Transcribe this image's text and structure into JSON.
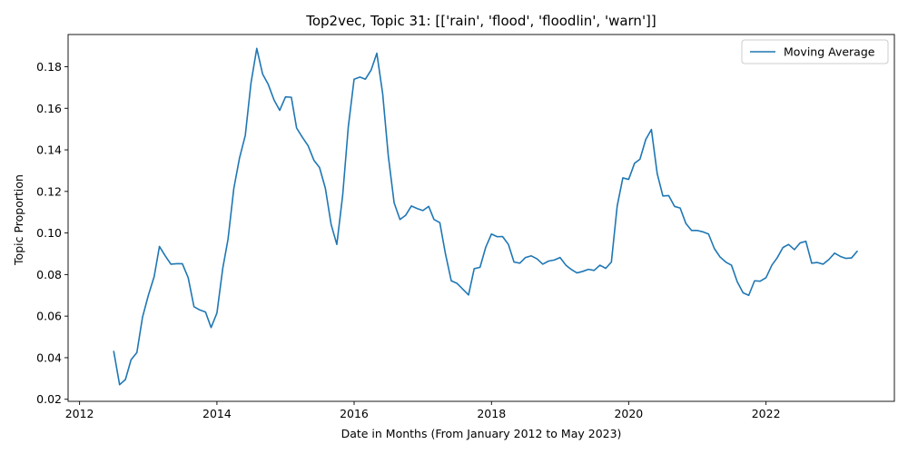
{
  "chart_data": {
    "type": "line",
    "title": "Top2vec, Topic 31: [['rain', 'flood', 'floodlin', 'warn']]",
    "xlabel": "Date in Months (From January 2012 to May 2023)",
    "ylabel": "Topic Proportion",
    "xlim": [
      "2011-11-01",
      "2023-11-15"
    ],
    "ylim": [
      0.019,
      0.1955
    ],
    "x_ticks": [
      {
        "value": "2012-01-01",
        "label": "2012"
      },
      {
        "value": "2014-01-01",
        "label": "2014"
      },
      {
        "value": "2016-01-01",
        "label": "2016"
      },
      {
        "value": "2018-01-01",
        "label": "2018"
      },
      {
        "value": "2020-01-01",
        "label": "2020"
      },
      {
        "value": "2022-01-01",
        "label": "2022"
      }
    ],
    "y_ticks": [
      {
        "value": 0.02,
        "label": "0.02"
      },
      {
        "value": 0.04,
        "label": "0.04"
      },
      {
        "value": 0.06,
        "label": "0.06"
      },
      {
        "value": 0.08,
        "label": "0.08"
      },
      {
        "value": 0.1,
        "label": "0.10"
      },
      {
        "value": 0.12,
        "label": "0.12"
      },
      {
        "value": 0.14,
        "label": "0.14"
      },
      {
        "value": 0.16,
        "label": "0.16"
      },
      {
        "value": 0.18,
        "label": "0.18"
      }
    ],
    "grid": false,
    "legend_position": "top-right",
    "series": [
      {
        "name": "Moving Average",
        "color": "#1f77b4",
        "x": [
          "2012-07",
          "2012-08",
          "2012-09",
          "2012-10",
          "2012-11",
          "2012-12",
          "2013-01",
          "2013-02",
          "2013-03",
          "2013-04",
          "2013-05",
          "2013-06",
          "2013-07",
          "2013-08",
          "2013-09",
          "2013-10",
          "2013-11",
          "2013-12",
          "2014-01",
          "2014-02",
          "2014-03",
          "2014-04",
          "2014-05",
          "2014-06",
          "2014-07",
          "2014-08",
          "2014-09",
          "2014-10",
          "2014-11",
          "2014-12",
          "2015-01",
          "2015-02",
          "2015-03",
          "2015-04",
          "2015-05",
          "2015-06",
          "2015-07",
          "2015-08",
          "2015-09",
          "2015-10",
          "2015-11",
          "2015-12",
          "2016-01",
          "2016-02",
          "2016-03",
          "2016-04",
          "2016-05",
          "2016-06",
          "2016-07",
          "2016-08",
          "2016-09",
          "2016-10",
          "2016-11",
          "2016-12",
          "2017-01",
          "2017-02",
          "2017-03",
          "2017-04",
          "2017-05",
          "2017-06",
          "2017-07",
          "2017-08",
          "2017-09",
          "2017-10",
          "2017-11",
          "2017-12",
          "2018-01",
          "2018-02",
          "2018-03",
          "2018-04",
          "2018-05",
          "2018-06",
          "2018-07",
          "2018-08",
          "2018-09",
          "2018-10",
          "2018-11",
          "2018-12",
          "2019-01",
          "2019-02",
          "2019-03",
          "2019-04",
          "2019-05",
          "2019-06",
          "2019-07",
          "2019-08",
          "2019-09",
          "2019-10",
          "2019-11",
          "2019-12",
          "2020-01",
          "2020-02",
          "2020-03",
          "2020-04",
          "2020-05",
          "2020-06",
          "2020-07",
          "2020-08",
          "2020-09",
          "2020-10",
          "2020-11",
          "2020-12",
          "2021-01",
          "2021-02",
          "2021-03",
          "2021-04",
          "2021-05",
          "2021-06",
          "2021-07",
          "2021-08",
          "2021-09",
          "2021-10",
          "2021-11",
          "2021-12",
          "2022-01",
          "2022-02",
          "2022-03",
          "2022-04",
          "2022-05",
          "2022-06",
          "2022-07",
          "2022-08",
          "2022-09",
          "2022-10",
          "2022-11",
          "2022-12",
          "2023-01",
          "2023-02",
          "2023-03",
          "2023-04",
          "2023-05"
        ],
        "values": [
          0.043,
          0.027,
          0.0295,
          0.039,
          0.0425,
          0.0595,
          0.07,
          0.079,
          0.0935,
          0.089,
          0.085,
          0.0852,
          0.0852,
          0.0785,
          0.0645,
          0.063,
          0.062,
          0.0545,
          0.0615,
          0.083,
          0.097,
          0.1215,
          0.136,
          0.147,
          0.172,
          0.1888,
          0.1765,
          0.1715,
          0.164,
          0.159,
          0.1655,
          0.1653,
          0.1505,
          0.146,
          0.142,
          0.135,
          0.1315,
          0.1215,
          0.104,
          0.0945,
          0.118,
          0.151,
          0.174,
          0.175,
          0.174,
          0.1785,
          0.1865,
          0.167,
          0.137,
          0.1145,
          0.1065,
          0.1085,
          0.113,
          0.1118,
          0.1108,
          0.1128,
          0.1065,
          0.105,
          0.09,
          0.077,
          0.0758,
          0.073,
          0.0702,
          0.0828,
          0.0835,
          0.093,
          0.0995,
          0.0982,
          0.0983,
          0.0945,
          0.086,
          0.0855,
          0.0882,
          0.089,
          0.0875,
          0.085,
          0.0865,
          0.087,
          0.0882,
          0.0845,
          0.0825,
          0.0808,
          0.0815,
          0.0825,
          0.082,
          0.0845,
          0.083,
          0.086,
          0.113,
          0.1265,
          0.1258,
          0.1335,
          0.1355,
          0.145,
          0.1498,
          0.1285,
          0.1178,
          0.118,
          0.1128,
          0.112,
          0.1045,
          0.1012,
          0.1012,
          0.1005,
          0.0995,
          0.0925,
          0.0885,
          0.086,
          0.0845,
          0.0765,
          0.0712,
          0.07,
          0.077,
          0.0768,
          0.0785,
          0.0845,
          0.088,
          0.093,
          0.0945,
          0.092,
          0.0952,
          0.096,
          0.0855,
          0.0858,
          0.085,
          0.0872,
          0.0903,
          0.0887,
          0.0878,
          0.088,
          0.0912
        ]
      }
    ]
  }
}
